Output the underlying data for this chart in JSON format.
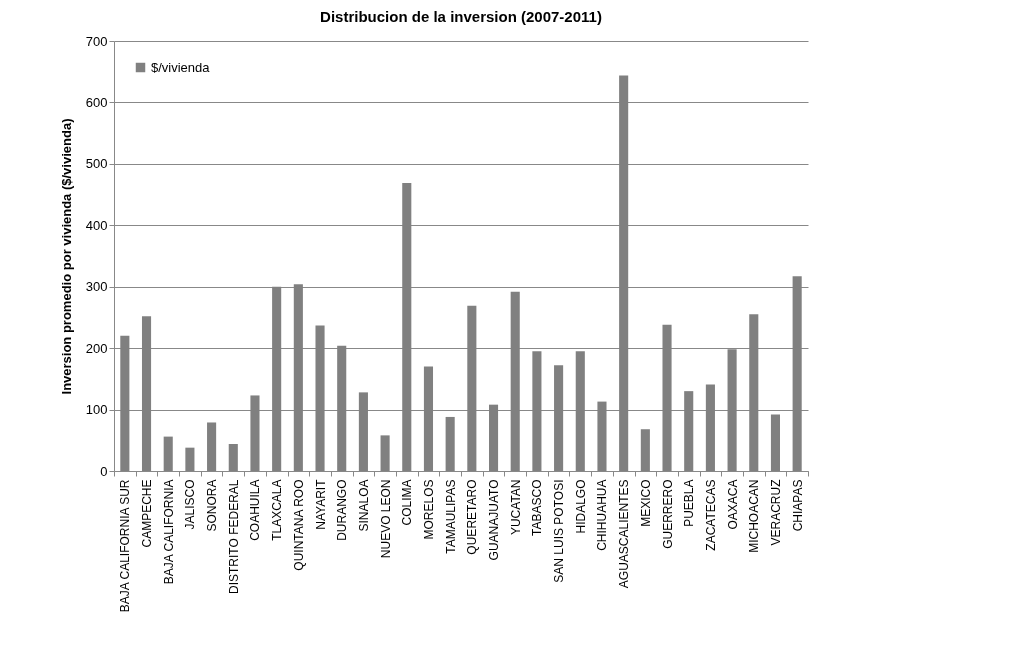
{
  "chart_data": {
    "type": "bar",
    "title": "Distribucion de la inversion (2007-2011)",
    "ylabel": "Inversion promedio por vivienda ($/vivienda)",
    "categories": [
      "BAJA CALIFORNIA SUR",
      "CAMPECHE",
      "BAJA CALIFORNIA",
      "JALISCO",
      "SONORA",
      "DISTRITO FEDERAL",
      "COAHUILA",
      "TLAXCALA",
      "QUINTANA ROO",
      "NAYARIT",
      "DURANGO",
      "SINALOA",
      "NUEVO LEON",
      "COLIMA",
      "MORELOS",
      "TAMAULIPAS",
      "QUERETARO",
      "GUANAJUATO",
      "YUCATAN",
      "TABASCO",
      "SAN LUIS POTOSI",
      "HIDALGO",
      "CHIHUAHUA",
      "AGUASCALIENTES",
      "MEXICO",
      "GUERRERO",
      "PUEBLA",
      "ZACATECAS",
      "OAXACA",
      "MICHOACAN",
      "VERACRUZ",
      "CHIAPAS"
    ],
    "series": [
      {
        "name": "$/vivienda",
        "color": "#808080",
        "values": [
          220,
          252,
          56,
          38,
          79,
          44,
          123,
          300,
          304,
          237,
          204,
          128,
          58,
          469,
          170,
          88,
          269,
          108,
          292,
          195,
          172,
          195,
          113,
          644,
          68,
          238,
          130,
          141,
          198,
          255,
          92,
          317
        ]
      }
    ],
    "ylim": [
      0,
      700
    ],
    "yticks": [
      0,
      100,
      200,
      300,
      400,
      500,
      600,
      700
    ],
    "grid": "y",
    "legend": "top left"
  }
}
